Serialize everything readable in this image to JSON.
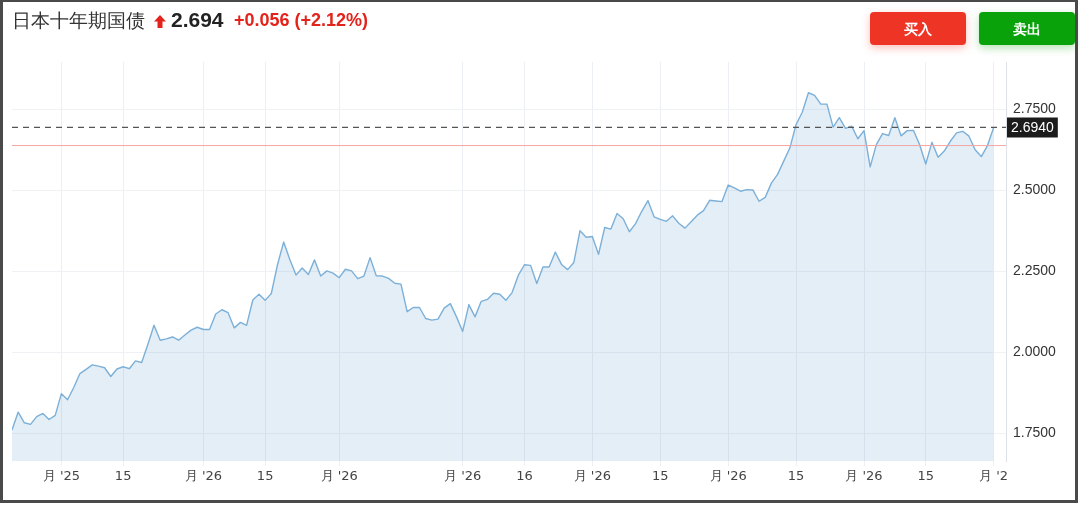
{
  "chart_data": {
    "type": "area",
    "title": "日本十年期国债",
    "annotations": [
      "2.694",
      "+0.056 (+2.12%)",
      "买入",
      "卖出"
    ],
    "categories": [
      null,
      null,
      null,
      null,
      null,
      null,
      null,
      null,
      "月 '25",
      null,
      null,
      null,
      null,
      null,
      null,
      null,
      null,
      null,
      "15",
      null,
      null,
      null,
      null,
      null,
      null,
      null,
      null,
      null,
      null,
      null,
      null,
      "月 '26",
      null,
      null,
      null,
      null,
      null,
      null,
      null,
      null,
      null,
      "15",
      null,
      null,
      null,
      null,
      null,
      null,
      null,
      null,
      null,
      null,
      null,
      "月 '26",
      null,
      null,
      null,
      null,
      null,
      null,
      null,
      null,
      null,
      null,
      null,
      null,
      null,
      null,
      null,
      null,
      null,
      null,
      null,
      "月 '26",
      null,
      null,
      null,
      null,
      null,
      null,
      null,
      null,
      null,
      "16",
      null,
      null,
      null,
      null,
      null,
      null,
      null,
      null,
      null,
      null,
      "月 '26",
      null,
      null,
      null,
      null,
      null,
      null,
      null,
      null,
      null,
      null,
      "15",
      null,
      null,
      null,
      null,
      null,
      null,
      null,
      null,
      null,
      null,
      "月 '26",
      null,
      null,
      null,
      null,
      null,
      null,
      null,
      null,
      null,
      null,
      "15",
      null,
      null,
      null,
      null,
      null,
      null,
      null,
      null,
      null,
      null,
      "月 '26",
      null,
      null,
      null,
      null,
      null,
      null,
      null,
      null,
      null,
      "15",
      null,
      null,
      null,
      null,
      null,
      null,
      null,
      null,
      null,
      null,
      "月 '2",
      null,
      null
    ],
    "values": [
      1.76,
      1.815,
      1.782,
      1.777,
      1.801,
      1.811,
      1.792,
      1.805,
      1.872,
      1.853,
      1.891,
      1.934,
      1.947,
      1.961,
      1.957,
      1.952,
      1.925,
      1.948,
      1.955,
      1.949,
      1.973,
      1.968,
      2.024,
      2.083,
      2.037,
      2.041,
      2.047,
      2.037,
      2.053,
      2.068,
      2.077,
      2.07,
      2.07,
      2.118,
      2.131,
      2.122,
      2.075,
      2.092,
      2.083,
      2.161,
      2.179,
      2.16,
      2.181,
      2.27,
      2.34,
      2.286,
      2.238,
      2.26,
      2.24,
      2.285,
      2.235,
      2.251,
      2.244,
      2.23,
      2.256,
      2.251,
      2.227,
      2.235,
      2.292,
      2.236,
      2.235,
      2.228,
      2.213,
      2.21,
      2.125,
      2.138,
      2.138,
      2.104,
      2.099,
      2.102,
      2.136,
      2.15,
      2.109,
      2.064,
      2.147,
      2.109,
      2.157,
      2.163,
      2.182,
      2.179,
      2.16,
      2.184,
      2.237,
      2.27,
      2.268,
      2.212,
      2.263,
      2.263,
      2.309,
      2.271,
      2.255,
      2.277,
      2.375,
      2.355,
      2.357,
      2.302,
      2.385,
      2.38,
      2.428,
      2.412,
      2.372,
      2.397,
      2.435,
      2.468,
      2.418,
      2.41,
      2.404,
      2.421,
      2.398,
      2.383,
      2.403,
      2.423,
      2.437,
      2.469,
      2.467,
      2.465,
      2.516,
      2.507,
      2.497,
      2.502,
      2.501,
      2.466,
      2.478,
      2.522,
      2.549,
      2.59,
      2.631,
      2.703,
      2.741,
      2.801,
      2.793,
      2.766,
      2.766,
      2.695,
      2.724,
      2.691,
      2.698,
      2.659,
      2.684,
      2.572,
      2.641,
      2.675,
      2.669,
      2.724,
      2.668,
      2.684,
      2.685,
      2.641,
      2.581,
      2.648,
      2.602,
      2.621,
      2.652,
      2.677,
      2.682,
      2.667,
      2.625,
      2.604,
      2.638,
      2.694,
      null,
      null
    ],
    "color": "#7cb0d8",
    "ylim": [
      1.664,
      2.896
    ],
    "yticks": [
      {
        "value": 1.75,
        "label": "1.7500"
      },
      {
        "value": 2.0,
        "label": "2.0000"
      },
      {
        "value": 2.25,
        "label": "2.2500"
      },
      {
        "value": 2.5,
        "label": "2.5000"
      },
      {
        "value": 2.75,
        "label": "2.7500"
      }
    ],
    "grid": true,
    "ref_lines": [
      {
        "axis": "y",
        "value": 2.694,
        "label": "2.6940",
        "color": "#555555",
        "line_style": "dashed"
      },
      {
        "axis": "y",
        "value": 2.638,
        "color": "#f5a5a5"
      }
    ]
  }
}
